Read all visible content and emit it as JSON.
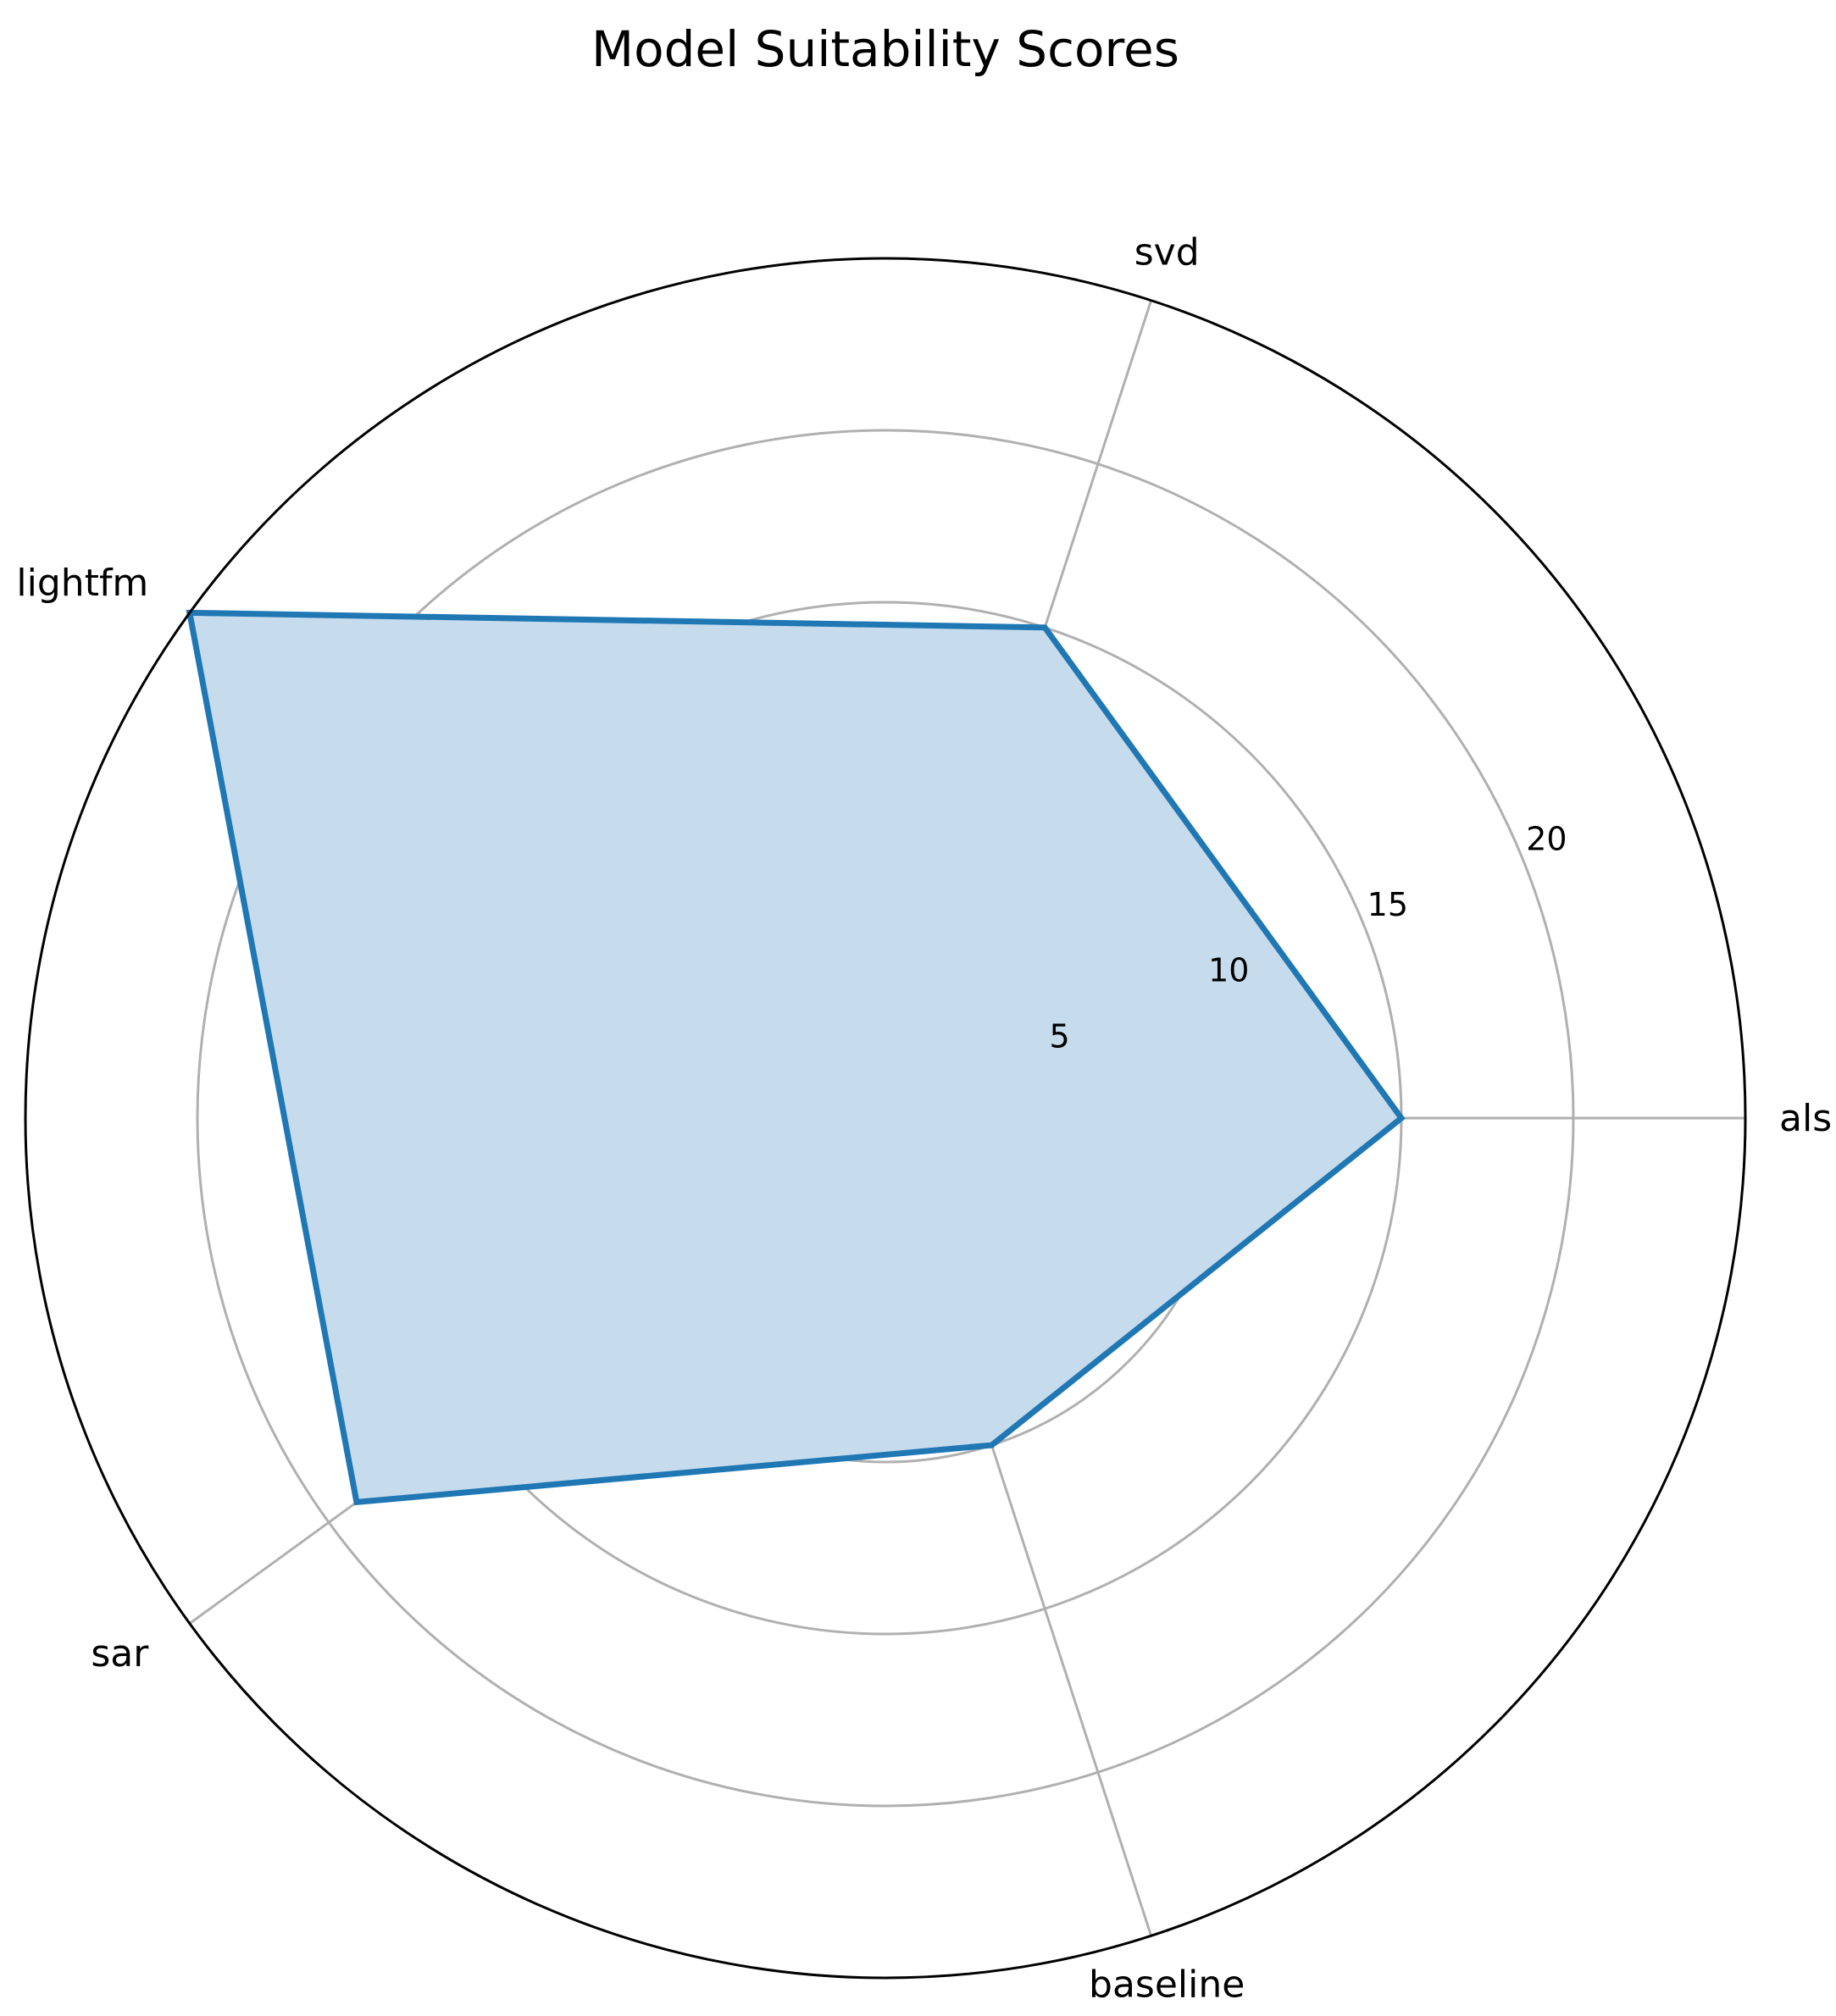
{
  "chart_data": {
    "type": "radar",
    "title": "Model Suitability Scores",
    "categories": [
      "als",
      "svd",
      "lightfm",
      "sar",
      "baseline"
    ],
    "series": [
      {
        "values": [
          15,
          15,
          25,
          19,
          10
        ]
      }
    ],
    "rlim": [
      0,
      25
    ],
    "r_ticks": [
      5,
      10,
      15,
      20
    ],
    "r_tick_labels": [
      "5",
      "10",
      "15",
      "20"
    ],
    "grid": true,
    "legend": "none",
    "colors": {
      "line": "#1f77b4",
      "fill": "#c6dbec",
      "grid": "#b0b0b0",
      "frame": "#000000"
    }
  }
}
